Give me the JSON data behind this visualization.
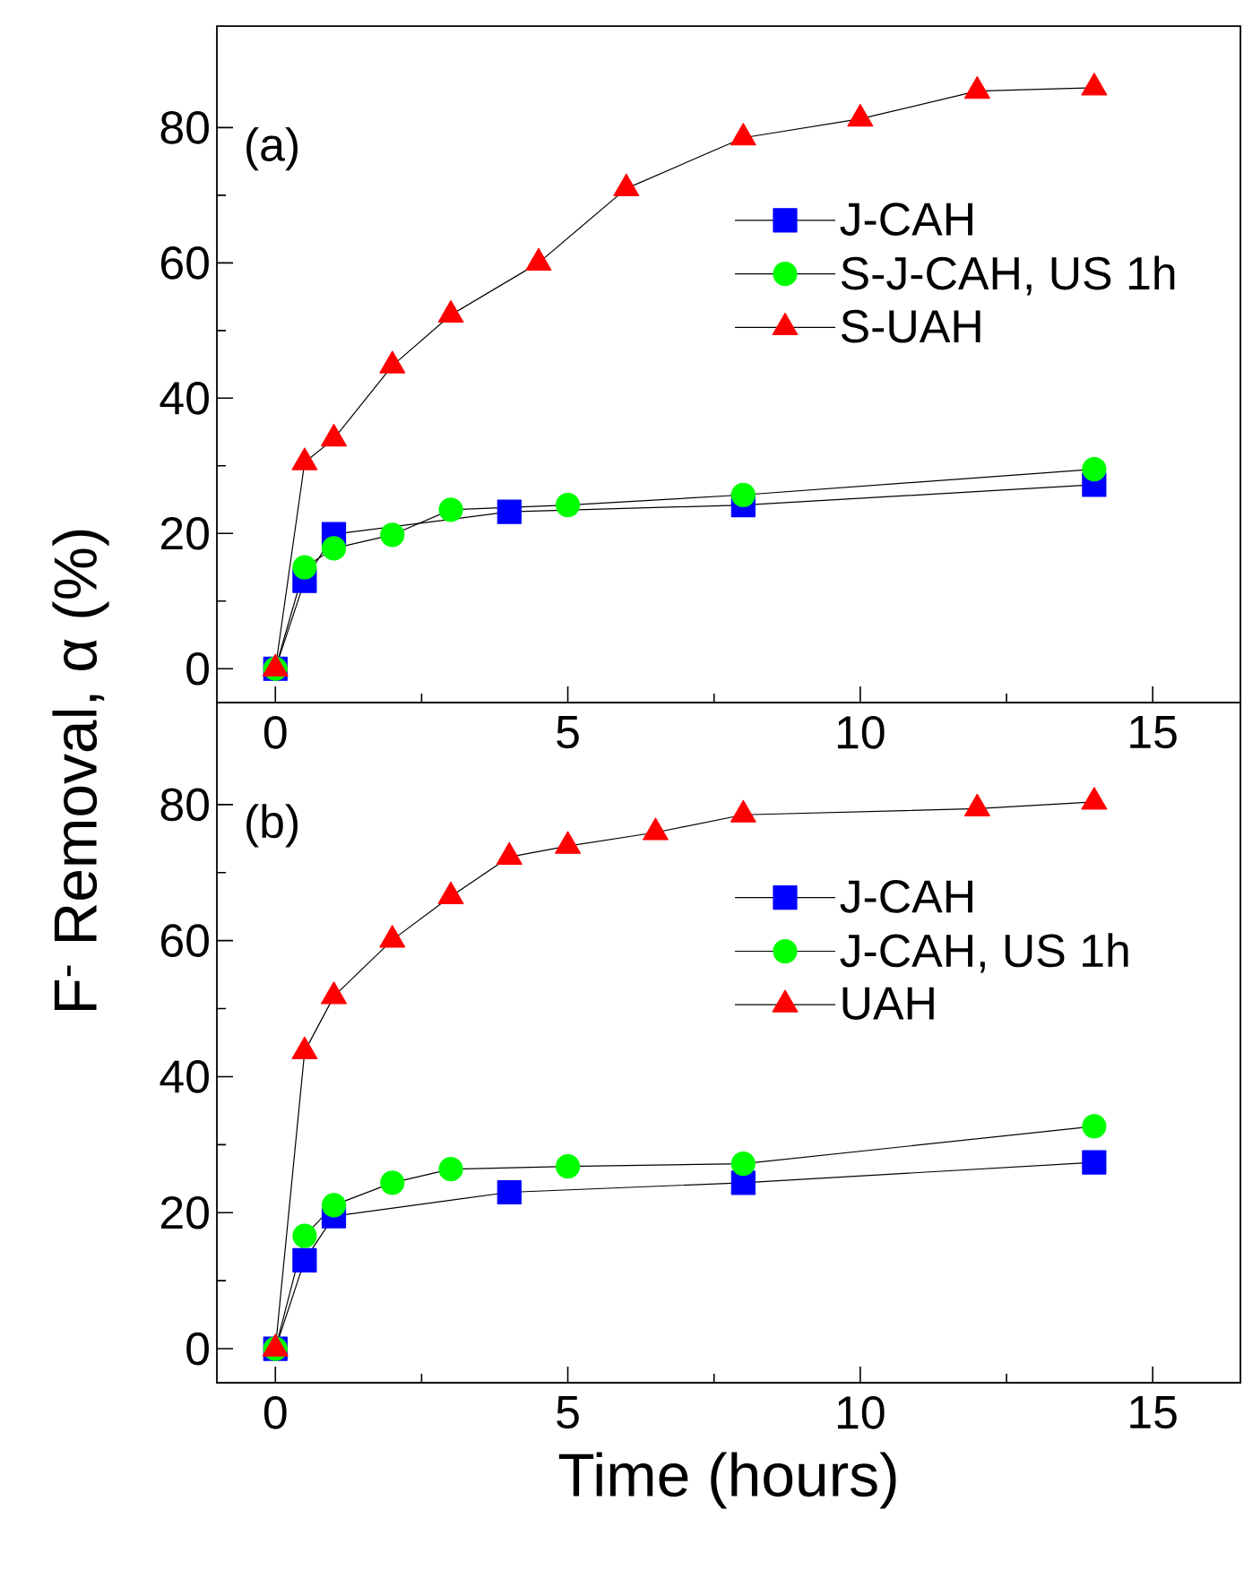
{
  "chart_data": [
    {
      "type": "line",
      "ylabel": "F$^{-}$ Removal, α (%)",
      "annotations": [
        "(a)"
      ],
      "xlim": [
        -1,
        16.5
      ],
      "ylim": [
        -5,
        95
      ],
      "xticks": [
        0,
        5,
        10,
        15
      ],
      "yticks": [
        0,
        20,
        40,
        60,
        80
      ],
      "legend": "right",
      "grid": false,
      "series": [
        {
          "name": "J-CAH",
          "color": "#0000ff",
          "marker": "square",
          "x": [
            0,
            0.5,
            1,
            4,
            8,
            14
          ],
          "values": [
            0,
            13,
            19.9,
            23.2,
            24.2,
            27.2
          ]
        },
        {
          "name": "S-J-CAH, US 1h",
          "color": "#00ff00",
          "marker": "circle",
          "x": [
            0,
            0.5,
            1,
            2,
            3,
            5,
            8,
            14
          ],
          "values": [
            0,
            15,
            17.8,
            19.8,
            23.5,
            24.2,
            25.7,
            29.5
          ]
        },
        {
          "name": "S-UAH",
          "color": "#ff0000",
          "marker": "triangle",
          "x": [
            0,
            0.5,
            1,
            2,
            3,
            4.5,
            6,
            8,
            10,
            12,
            14
          ],
          "values": [
            0,
            30.5,
            34,
            44.8,
            52.3,
            60,
            71,
            78.5,
            81.3,
            85.4,
            85.9
          ]
        }
      ]
    },
    {
      "type": "line",
      "xlabel": "Time (hours)",
      "annotations": [
        "(b)"
      ],
      "xlim": [
        -1,
        16.5
      ],
      "ylim": [
        -5,
        95
      ],
      "xticks": [
        0,
        5,
        10,
        15
      ],
      "yticks": [
        0,
        20,
        40,
        60,
        80
      ],
      "legend": "right",
      "grid": false,
      "series": [
        {
          "name": "J-CAH",
          "color": "#0000ff",
          "marker": "square",
          "x": [
            0,
            0.5,
            1,
            4,
            8,
            14
          ],
          "values": [
            0,
            13,
            19.5,
            23,
            24.4,
            27.4
          ]
        },
        {
          "name": "J-CAH, US 1h",
          "color": "#00ff00",
          "marker": "circle",
          "x": [
            0,
            0.5,
            1,
            2,
            3,
            5,
            8,
            14
          ],
          "values": [
            0,
            16.6,
            21.1,
            24.4,
            26.4,
            26.8,
            27.2,
            32.7
          ]
        },
        {
          "name": "UAH",
          "color": "#ff0000",
          "marker": "triangle",
          "x": [
            0,
            0.5,
            1,
            2,
            3,
            4,
            5,
            6.5,
            8,
            12,
            14
          ],
          "values": [
            0,
            43.7,
            51.8,
            60.1,
            66.5,
            72.3,
            73.9,
            75.9,
            78.5,
            79.4,
            80.4
          ]
        }
      ]
    }
  ]
}
